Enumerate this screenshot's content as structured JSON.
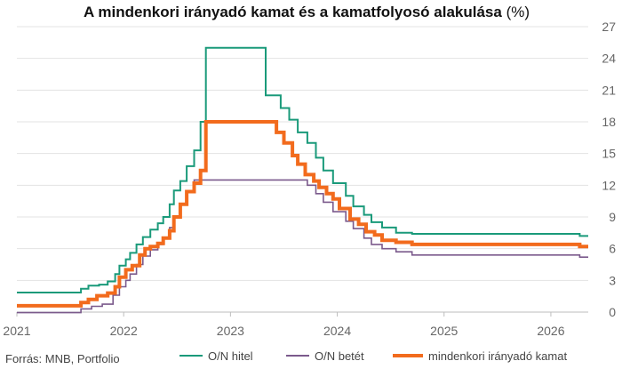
{
  "title": "A mindenkori irányadó kamat és a kamatfolyosó alakulása",
  "title_unit": "(%)",
  "source": "Forrás: MNB, Portfolio",
  "chart_data": {
    "type": "line",
    "xlim": [
      2021.0,
      2026.35
    ],
    "ylim": [
      0,
      27
    ],
    "x_ticks": [
      2021,
      2022,
      2023,
      2024,
      2025,
      2026
    ],
    "y_ticks": [
      0,
      3,
      6,
      9,
      12,
      15,
      18,
      21,
      24,
      27
    ],
    "y_axis_position": "right",
    "grid": "horizontal",
    "legend_position": "bottom",
    "series": [
      {
        "name": "O/N hitel",
        "color": "#1a9a7a",
        "step": true,
        "points": [
          [
            2021.0,
            1.85
          ],
          [
            2021.6,
            1.85
          ],
          [
            2021.6,
            2.2
          ],
          [
            2021.67,
            2.2
          ],
          [
            2021.67,
            2.5
          ],
          [
            2021.77,
            2.5
          ],
          [
            2021.77,
            2.6
          ],
          [
            2021.85,
            2.6
          ],
          [
            2021.85,
            2.9
          ],
          [
            2021.92,
            2.9
          ],
          [
            2021.92,
            3.6
          ],
          [
            2021.96,
            3.6
          ],
          [
            2021.96,
            4.4
          ],
          [
            2022.02,
            4.4
          ],
          [
            2022.02,
            5.0
          ],
          [
            2022.06,
            5.0
          ],
          [
            2022.06,
            5.6
          ],
          [
            2022.12,
            5.6
          ],
          [
            2022.12,
            6.4
          ],
          [
            2022.18,
            6.4
          ],
          [
            2022.18,
            7.1
          ],
          [
            2022.25,
            7.1
          ],
          [
            2022.25,
            7.8
          ],
          [
            2022.32,
            7.8
          ],
          [
            2022.32,
            8.4
          ],
          [
            2022.37,
            8.4
          ],
          [
            2022.37,
            9.0
          ],
          [
            2022.43,
            9.0
          ],
          [
            2022.43,
            10.2
          ],
          [
            2022.47,
            10.2
          ],
          [
            2022.47,
            11.5
          ],
          [
            2022.53,
            11.5
          ],
          [
            2022.53,
            12.4
          ],
          [
            2022.59,
            12.4
          ],
          [
            2022.59,
            13.8
          ],
          [
            2022.66,
            13.8
          ],
          [
            2022.66,
            15.3
          ],
          [
            2022.72,
            15.3
          ],
          [
            2022.72,
            18.0
          ],
          [
            2022.77,
            18.0
          ],
          [
            2022.77,
            25.0
          ],
          [
            2023.33,
            25.0
          ],
          [
            2023.33,
            20.5
          ],
          [
            2023.47,
            20.5
          ],
          [
            2023.47,
            19.3
          ],
          [
            2023.55,
            19.3
          ],
          [
            2023.55,
            18.2
          ],
          [
            2023.63,
            18.2
          ],
          [
            2023.63,
            17.0
          ],
          [
            2023.72,
            17.0
          ],
          [
            2023.72,
            16.0
          ],
          [
            2023.8,
            16.0
          ],
          [
            2023.8,
            14.6
          ],
          [
            2023.87,
            14.6
          ],
          [
            2023.87,
            13.4
          ],
          [
            2023.96,
            13.4
          ],
          [
            2023.96,
            12.2
          ],
          [
            2024.08,
            12.2
          ],
          [
            2024.08,
            11.0
          ],
          [
            2024.15,
            11.0
          ],
          [
            2024.15,
            10.0
          ],
          [
            2024.25,
            10.0
          ],
          [
            2024.25,
            9.2
          ],
          [
            2024.32,
            9.2
          ],
          [
            2024.32,
            8.5
          ],
          [
            2024.42,
            8.5
          ],
          [
            2024.42,
            8.0
          ],
          [
            2024.55,
            8.0
          ],
          [
            2024.55,
            7.5
          ],
          [
            2024.7,
            7.5
          ],
          [
            2024.7,
            7.4
          ],
          [
            2026.27,
            7.4
          ],
          [
            2026.27,
            7.2
          ],
          [
            2026.35,
            7.2
          ]
        ]
      },
      {
        "name": "O/N betét",
        "color": "#7b5a8c",
        "step": true,
        "points": [
          [
            2021.0,
            -0.05
          ],
          [
            2021.6,
            -0.05
          ],
          [
            2021.6,
            0.3
          ],
          [
            2021.7,
            0.3
          ],
          [
            2021.7,
            0.55
          ],
          [
            2021.8,
            0.55
          ],
          [
            2021.8,
            0.75
          ],
          [
            2021.9,
            0.75
          ],
          [
            2021.9,
            1.6
          ],
          [
            2021.96,
            1.6
          ],
          [
            2021.96,
            2.4
          ],
          [
            2022.02,
            2.4
          ],
          [
            2022.02,
            3.0
          ],
          [
            2022.06,
            3.0
          ],
          [
            2022.06,
            3.6
          ],
          [
            2022.12,
            3.6
          ],
          [
            2022.12,
            4.5
          ],
          [
            2022.18,
            4.5
          ],
          [
            2022.18,
            5.3
          ],
          [
            2022.25,
            5.3
          ],
          [
            2022.25,
            5.9
          ],
          [
            2022.32,
            5.9
          ],
          [
            2022.32,
            6.4
          ],
          [
            2022.37,
            6.4
          ],
          [
            2022.37,
            7.0
          ],
          [
            2022.43,
            7.0
          ],
          [
            2022.43,
            8.0
          ],
          [
            2022.47,
            8.0
          ],
          [
            2022.47,
            9.0
          ],
          [
            2022.53,
            9.0
          ],
          [
            2022.53,
            10.2
          ],
          [
            2022.59,
            10.2
          ],
          [
            2022.59,
            11.4
          ],
          [
            2022.66,
            11.4
          ],
          [
            2022.66,
            12.5
          ],
          [
            2023.72,
            12.5
          ],
          [
            2023.72,
            12.0
          ],
          [
            2023.8,
            12.0
          ],
          [
            2023.8,
            11.2
          ],
          [
            2023.87,
            11.2
          ],
          [
            2023.87,
            10.4
          ],
          [
            2023.96,
            10.4
          ],
          [
            2023.96,
            9.5
          ],
          [
            2024.08,
            9.5
          ],
          [
            2024.08,
            8.6
          ],
          [
            2024.15,
            8.6
          ],
          [
            2024.15,
            7.9
          ],
          [
            2024.25,
            7.9
          ],
          [
            2024.25,
            7.0
          ],
          [
            2024.32,
            7.0
          ],
          [
            2024.32,
            6.4
          ],
          [
            2024.42,
            6.4
          ],
          [
            2024.42,
            6.0
          ],
          [
            2024.55,
            6.0
          ],
          [
            2024.55,
            5.7
          ],
          [
            2024.7,
            5.7
          ],
          [
            2024.7,
            5.4
          ],
          [
            2026.27,
            5.4
          ],
          [
            2026.27,
            5.2
          ],
          [
            2026.35,
            5.2
          ]
        ]
      },
      {
        "name": "mindenkori irányadó kamat",
        "color": "#f26b1d",
        "step": true,
        "points": [
          [
            2021.0,
            0.6
          ],
          [
            2021.6,
            0.6
          ],
          [
            2021.6,
            0.9
          ],
          [
            2021.67,
            0.9
          ],
          [
            2021.67,
            1.2
          ],
          [
            2021.75,
            1.2
          ],
          [
            2021.75,
            1.55
          ],
          [
            2021.85,
            1.55
          ],
          [
            2021.85,
            1.8
          ],
          [
            2021.92,
            1.8
          ],
          [
            2021.92,
            2.4
          ],
          [
            2021.96,
            2.4
          ],
          [
            2021.96,
            3.3
          ],
          [
            2022.02,
            3.3
          ],
          [
            2022.02,
            4.0
          ],
          [
            2022.08,
            4.0
          ],
          [
            2022.08,
            4.4
          ],
          [
            2022.15,
            4.4
          ],
          [
            2022.15,
            5.4
          ],
          [
            2022.2,
            5.4
          ],
          [
            2022.2,
            6.0
          ],
          [
            2022.25,
            6.0
          ],
          [
            2022.25,
            6.2
          ],
          [
            2022.32,
            6.2
          ],
          [
            2022.32,
            6.5
          ],
          [
            2022.37,
            6.5
          ],
          [
            2022.37,
            7.0
          ],
          [
            2022.43,
            7.0
          ],
          [
            2022.43,
            7.7
          ],
          [
            2022.47,
            7.7
          ],
          [
            2022.47,
            9.0
          ],
          [
            2022.53,
            9.0
          ],
          [
            2022.53,
            10.2
          ],
          [
            2022.59,
            10.2
          ],
          [
            2022.59,
            11.4
          ],
          [
            2022.66,
            11.4
          ],
          [
            2022.66,
            12.2
          ],
          [
            2022.72,
            12.2
          ],
          [
            2022.72,
            13.4
          ],
          [
            2022.77,
            13.4
          ],
          [
            2022.77,
            18.0
          ],
          [
            2023.43,
            18.0
          ],
          [
            2023.43,
            17.0
          ],
          [
            2023.5,
            17.0
          ],
          [
            2023.5,
            16.0
          ],
          [
            2023.58,
            16.0
          ],
          [
            2023.58,
            14.8
          ],
          [
            2023.63,
            14.8
          ],
          [
            2023.63,
            14.0
          ],
          [
            2023.7,
            14.0
          ],
          [
            2023.7,
            13.0
          ],
          [
            2023.78,
            13.0
          ],
          [
            2023.78,
            12.4
          ],
          [
            2023.83,
            12.4
          ],
          [
            2023.83,
            11.8
          ],
          [
            2023.9,
            11.8
          ],
          [
            2023.9,
            11.2
          ],
          [
            2023.96,
            11.2
          ],
          [
            2023.96,
            10.7
          ],
          [
            2024.02,
            10.7
          ],
          [
            2024.02,
            9.8
          ],
          [
            2024.12,
            9.8
          ],
          [
            2024.12,
            8.8
          ],
          [
            2024.2,
            8.8
          ],
          [
            2024.2,
            8.3
          ],
          [
            2024.27,
            8.3
          ],
          [
            2024.27,
            7.6
          ],
          [
            2024.35,
            7.6
          ],
          [
            2024.35,
            7.3
          ],
          [
            2024.42,
            7.3
          ],
          [
            2024.42,
            6.8
          ],
          [
            2024.55,
            6.8
          ],
          [
            2024.55,
            6.6
          ],
          [
            2024.7,
            6.6
          ],
          [
            2024.7,
            6.4
          ],
          [
            2026.27,
            6.4
          ],
          [
            2026.27,
            6.2
          ],
          [
            2026.35,
            6.2
          ]
        ]
      }
    ]
  }
}
